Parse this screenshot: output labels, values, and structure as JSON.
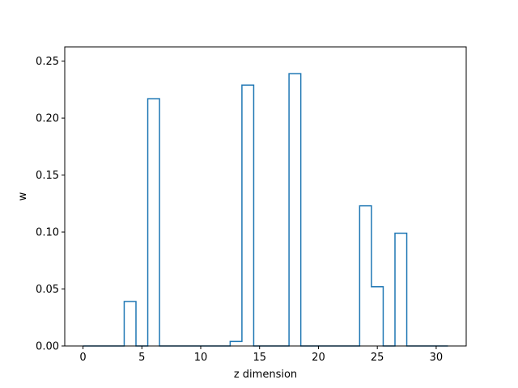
{
  "chart_data": {
    "type": "line",
    "drawstyle": "steps-mid",
    "title": "",
    "xlabel": "z dimension",
    "ylabel": "w",
    "xlim": [
      -1.55,
      32.55
    ],
    "ylim": [
      0,
      0.2625
    ],
    "xticks": [
      0,
      5,
      10,
      15,
      20,
      25,
      30
    ],
    "xtick_labels": [
      "0",
      "5",
      "10",
      "15",
      "20",
      "25",
      "30"
    ],
    "yticks": [
      0.0,
      0.05,
      0.1,
      0.15,
      0.2,
      0.25
    ],
    "ytick_labels": [
      "0.00",
      "0.05",
      "0.10",
      "0.15",
      "0.20",
      "0.25"
    ],
    "grid": false,
    "series": [
      {
        "color": "#1f77b4",
        "x": [
          0,
          1,
          2,
          3,
          4,
          5,
          6,
          7,
          8,
          9,
          10,
          11,
          12,
          13,
          14,
          15,
          16,
          17,
          18,
          19,
          20,
          21,
          22,
          23,
          24,
          25,
          26,
          27,
          28,
          29,
          30,
          31
        ],
        "y": [
          0,
          0,
          0,
          0,
          0.039,
          0,
          0.217,
          0,
          0,
          0,
          0,
          0,
          0,
          0.004,
          0.229,
          0,
          0,
          0,
          0.239,
          0,
          0,
          0,
          0,
          0,
          0.123,
          0.052,
          0,
          0.099,
          0,
          0,
          0,
          0
        ]
      }
    ]
  }
}
